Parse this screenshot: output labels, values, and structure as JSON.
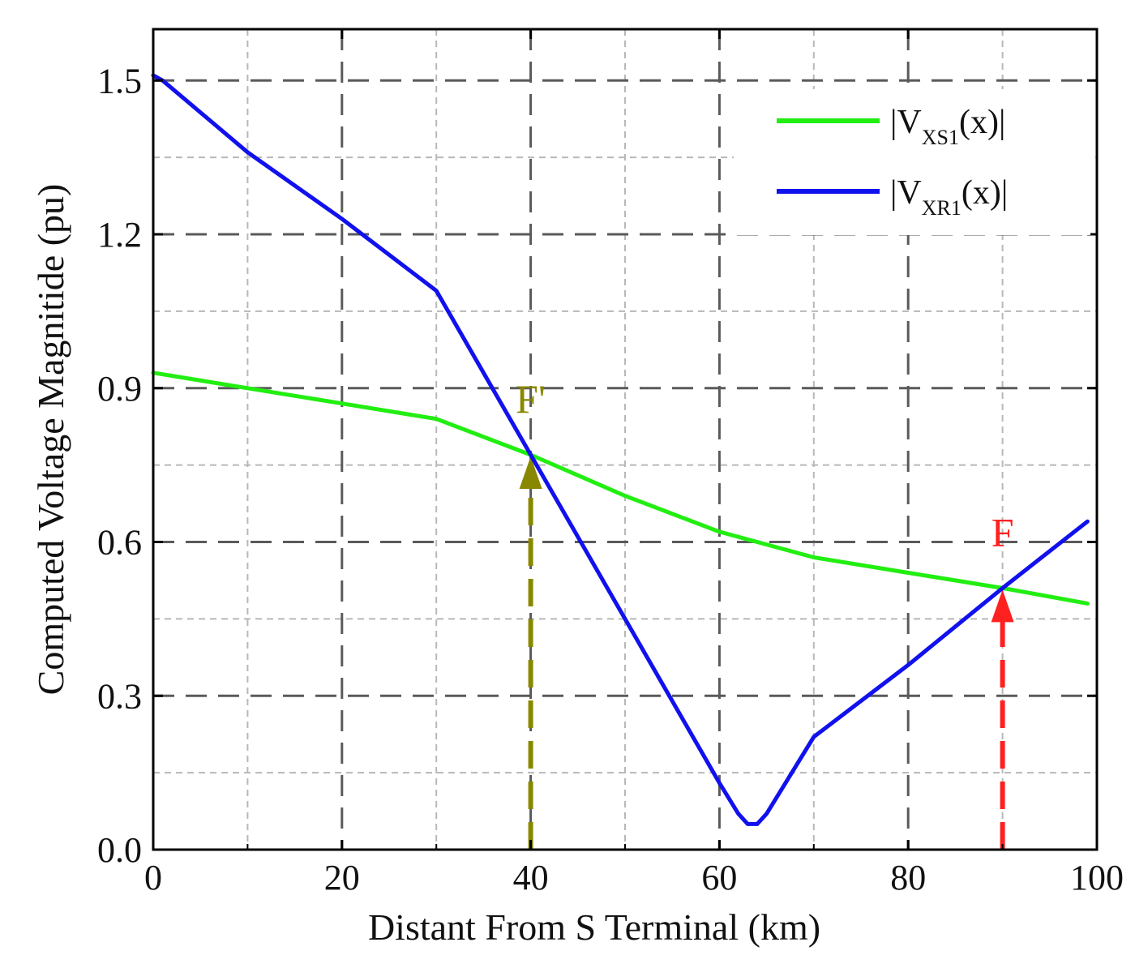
{
  "chart_data": {
    "type": "line",
    "title": "",
    "xlabel": "Distant From S Terminal (km)",
    "ylabel": "Computed Voltage Magnitide (pu)",
    "xlim": [
      0,
      100
    ],
    "ylim": [
      0,
      1.6
    ],
    "xticks": [
      0,
      20,
      40,
      60,
      80,
      100
    ],
    "xtick_labels": [
      "0",
      "20",
      "40",
      "60",
      "80",
      "100"
    ],
    "yticks": [
      0.0,
      0.3,
      0.6,
      0.9,
      1.2,
      1.5
    ],
    "ytick_labels": [
      "0.0",
      "0.3",
      "0.6",
      "0.9",
      "1.2",
      "1.5"
    ],
    "grid": true,
    "legend_position": "top-right",
    "series": [
      {
        "name": "|V_XS1(x)|",
        "label_main": "|V",
        "label_sub": "XS1",
        "label_tail": "(x)|",
        "color": "#22ee11",
        "x": [
          0,
          10,
          20,
          30,
          40,
          50,
          60,
          70,
          80,
          90,
          99
        ],
        "y": [
          0.93,
          0.9,
          0.87,
          0.84,
          0.77,
          0.69,
          0.62,
          0.57,
          0.54,
          0.51,
          0.48
        ]
      },
      {
        "name": "|V_XR1(x)|",
        "label_main": "|V",
        "label_sub": "XR1",
        "label_tail": "(x)|",
        "color": "#1111ee",
        "x": [
          0,
          1,
          10,
          20,
          30,
          40,
          50,
          55,
          60,
          62,
          63,
          64,
          65,
          67,
          70,
          80,
          90,
          99
        ],
        "y": [
          1.51,
          1.5,
          1.36,
          1.23,
          1.09,
          0.77,
          0.45,
          0.29,
          0.13,
          0.07,
          0.05,
          0.05,
          0.07,
          0.13,
          0.22,
          0.36,
          0.51,
          0.64
        ]
      }
    ],
    "annotations": [
      {
        "text": "F'",
        "x": 40,
        "y": 0.77,
        "color": "#888800"
      },
      {
        "text": "F",
        "x": 90,
        "y": 0.51,
        "color": "#ff2020"
      }
    ]
  }
}
